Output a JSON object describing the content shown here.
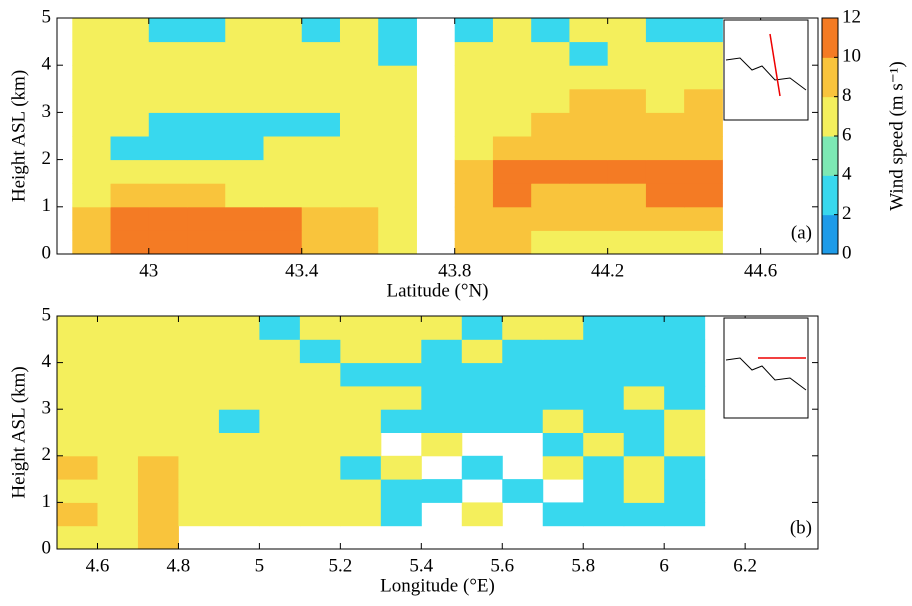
{
  "chart_data": [
    {
      "type": "heatmap",
      "xlabel": "Latitude (°N)",
      "ylabel": "Height ASL (km)",
      "panel_label": "(a)",
      "xlim": [
        42.76,
        44.75
      ],
      "ylim": [
        0,
        5
      ],
      "xticks": [
        43,
        43.4,
        43.8,
        44.2,
        44.6
      ],
      "yticks": [
        0,
        1,
        2,
        3,
        4,
        5
      ],
      "x": [
        42.85,
        42.95,
        43.05,
        43.15,
        43.25,
        43.35,
        43.45,
        43.55,
        43.65,
        43.75,
        43.85,
        43.95,
        44.05,
        44.15,
        44.25,
        44.35,
        44.45
      ],
      "y": [
        0.25,
        0.75,
        1.25,
        1.75,
        2.25,
        2.75,
        3.25,
        3.75,
        4.25,
        4.75
      ],
      "z": [
        [
          9,
          11,
          11,
          11,
          11,
          11,
          9,
          9,
          7,
          null,
          9,
          9,
          7,
          7,
          7,
          7,
          7
        ],
        [
          9,
          11,
          11,
          11,
          11,
          11,
          9,
          9,
          7,
          null,
          9,
          9,
          9,
          9,
          9,
          9,
          9
        ],
        [
          7,
          9,
          9,
          9,
          7,
          7,
          7,
          7,
          7,
          null,
          9,
          11,
          9,
          9,
          9,
          11,
          11
        ],
        [
          7,
          7,
          7,
          7,
          7,
          7,
          7,
          7,
          7,
          null,
          9,
          11,
          11,
          11,
          11,
          11,
          11
        ],
        [
          7,
          3,
          3,
          3,
          3,
          7,
          7,
          7,
          7,
          null,
          7,
          9,
          9,
          9,
          9,
          9,
          9
        ],
        [
          7,
          7,
          3,
          3,
          3,
          3,
          3,
          7,
          7,
          null,
          7,
          7,
          9,
          9,
          9,
          9,
          9
        ],
        [
          7,
          7,
          7,
          7,
          7,
          7,
          7,
          7,
          7,
          null,
          7,
          7,
          7,
          9,
          9,
          7,
          9
        ],
        [
          7,
          7,
          7,
          7,
          7,
          7,
          7,
          7,
          7,
          null,
          7,
          7,
          7,
          7,
          7,
          7,
          7
        ],
        [
          7,
          7,
          7,
          7,
          7,
          7,
          7,
          7,
          3,
          null,
          7,
          7,
          7,
          3,
          7,
          7,
          7
        ],
        [
          7,
          7,
          3,
          3,
          7,
          7,
          3,
          7,
          3,
          null,
          3,
          7,
          3,
          7,
          7,
          3,
          3
        ]
      ],
      "colorbar": {
        "label": "Wind speed (m s⁻¹)",
        "lim": [
          0,
          12
        ],
        "ticks": [
          0,
          2,
          4,
          6,
          8,
          10,
          12
        ],
        "colors": [
          "#1e9be8",
          "#38d8ee",
          "#7de8b4",
          "#f4ef5c",
          "#f9c43c",
          "#f47b24"
        ]
      }
    },
    {
      "type": "heatmap",
      "xlabel": "Longitude (°E)",
      "ylabel": "Height ASL (km)",
      "panel_label": "(b)",
      "xlim": [
        4.5,
        6.38
      ],
      "ylim": [
        0,
        5
      ],
      "xticks": [
        4.6,
        4.8,
        5,
        5.2,
        5.4,
        5.6,
        5.8,
        6,
        6.2
      ],
      "yticks": [
        0,
        1,
        2,
        3,
        4,
        5
      ],
      "x": [
        4.55,
        4.65,
        4.75,
        4.85,
        4.95,
        5.05,
        5.15,
        5.25,
        5.35,
        5.45,
        5.55,
        5.65,
        5.75,
        5.85,
        5.95,
        6.05
      ],
      "y": [
        0.25,
        0.75,
        1.25,
        1.75,
        2.25,
        2.75,
        3.25,
        3.75,
        4.25,
        4.75
      ],
      "z": [
        [
          7,
          7,
          9,
          null,
          null,
          null,
          null,
          null,
          null,
          null,
          null,
          null,
          null,
          null,
          null,
          null
        ],
        [
          9,
          7,
          9,
          7,
          7,
          7,
          7,
          7,
          3,
          null,
          7,
          null,
          3,
          3,
          3,
          3
        ],
        [
          7,
          7,
          9,
          7,
          7,
          7,
          7,
          7,
          3,
          3,
          null,
          3,
          null,
          3,
          7,
          3
        ],
        [
          9,
          7,
          9,
          7,
          7,
          7,
          7,
          3,
          7,
          null,
          3,
          null,
          7,
          3,
          7,
          3
        ],
        [
          7,
          7,
          7,
          7,
          7,
          7,
          7,
          7,
          null,
          7,
          null,
          null,
          3,
          7,
          3,
          7
        ],
        [
          7,
          7,
          7,
          7,
          3,
          7,
          7,
          7,
          3,
          3,
          3,
          3,
          7,
          3,
          3,
          7
        ],
        [
          7,
          7,
          7,
          7,
          7,
          7,
          7,
          7,
          7,
          3,
          3,
          3,
          3,
          3,
          7,
          3
        ],
        [
          7,
          7,
          7,
          7,
          7,
          7,
          7,
          3,
          3,
          3,
          3,
          3,
          3,
          3,
          3,
          3
        ],
        [
          7,
          7,
          7,
          7,
          7,
          7,
          3,
          7,
          7,
          3,
          7,
          3,
          3,
          3,
          3,
          3
        ],
        [
          7,
          7,
          7,
          7,
          7,
          3,
          7,
          7,
          7,
          7,
          3,
          7,
          7,
          3,
          3,
          3
        ]
      ]
    }
  ]
}
